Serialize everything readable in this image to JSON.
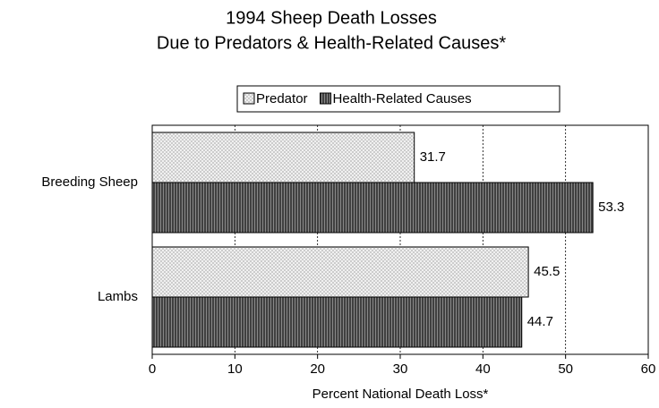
{
  "chart_data": {
    "type": "bar",
    "orientation": "horizontal",
    "title": "1994 Sheep Death Losses",
    "subtitle": "Due to Predators & Health-Related Causes*",
    "x_label": "Percent National Death Loss*",
    "categories": [
      "Breeding Sheep",
      "Lambs"
    ],
    "series": [
      {
        "name": "Predator",
        "color": "#c8c8c8",
        "values": [
          31.7,
          45.5
        ]
      },
      {
        "name": "Health-Related Causes",
        "color": "#404040",
        "values": [
          53.3,
          44.7
        ]
      }
    ],
    "xlim": [
      0,
      60
    ],
    "xticks": [
      0,
      10,
      20,
      30,
      40,
      50,
      60
    ],
    "grid": true,
    "legend": "top"
  }
}
